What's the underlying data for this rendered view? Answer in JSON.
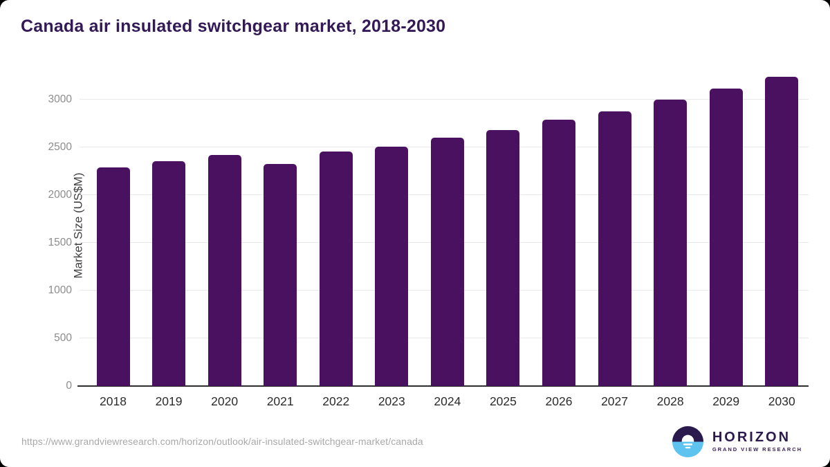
{
  "chart_data": {
    "type": "bar",
    "title": "Canada air insulated switchgear market, 2018-2030",
    "ylabel": "Market Size (US$M)",
    "xlabel": "",
    "categories": [
      "2018",
      "2019",
      "2020",
      "2021",
      "2022",
      "2023",
      "2024",
      "2025",
      "2026",
      "2027",
      "2028",
      "2029",
      "2030"
    ],
    "values": [
      2290,
      2360,
      2420,
      2330,
      2455,
      2510,
      2600,
      2685,
      2795,
      2880,
      3000,
      3120,
      3240
    ],
    "y_ticks": [
      0,
      500,
      1000,
      1500,
      2000,
      2500,
      3000
    ],
    "ylim": [
      0,
      3360
    ],
    "grid": "horizontal",
    "legend": "none",
    "bar_color": "#4a1160"
  },
  "footer": {
    "source_url": "https://www.grandviewresearch.com/horizon/outlook/air-insulated-switchgear-market/canada",
    "logo": {
      "name": "HORIZON",
      "subtitle": "GRAND VIEW RESEARCH"
    }
  },
  "colors": {
    "title": "#331a56",
    "bar": "#4a1160",
    "grid": "#e8e8e8",
    "axis": "#2e2e2e",
    "y_tick_label": "#8c8c8c",
    "x_tick_label": "#2b2b2b",
    "url_text": "#a8a8a8",
    "logo_purple": "#2b1a4d",
    "logo_blue": "#5fc3f0"
  }
}
